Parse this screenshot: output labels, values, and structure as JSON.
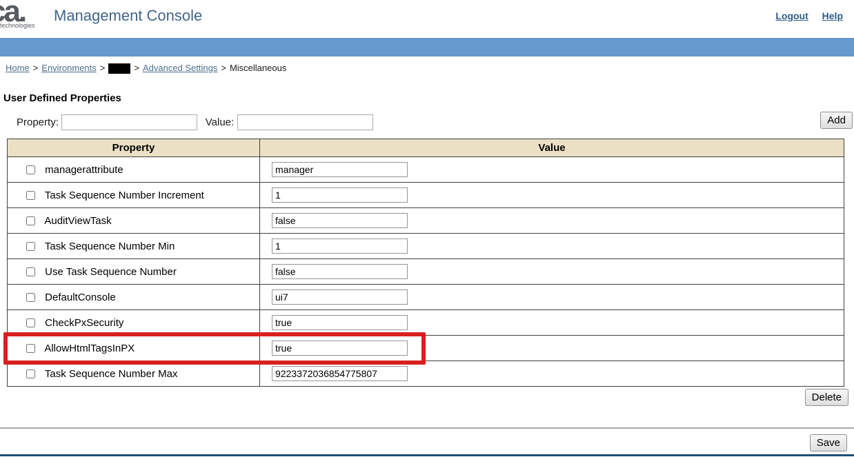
{
  "header": {
    "logo_brand": "ca.",
    "logo_sub": "technologies",
    "title": "Management Console",
    "logout_label": "Logout",
    "help_label": "Help"
  },
  "breadcrumb": {
    "separator": ">",
    "home": "Home",
    "environments": "Environments",
    "advanced_settings": "Advanced Settings",
    "current": "Miscellaneous"
  },
  "main": {
    "heading": "User Defined Properties",
    "add_form": {
      "property_label": "Property:",
      "property_value": "",
      "value_label": "Value:",
      "value_value": "",
      "add_button": "Add"
    },
    "table": {
      "columns": [
        "Property",
        "Value"
      ],
      "rows": [
        {
          "property": "managerattribute",
          "value": "manager",
          "checked": false,
          "highlighted": false
        },
        {
          "property": "Task Sequence Number Increment",
          "value": "1",
          "checked": false,
          "highlighted": false
        },
        {
          "property": "AuditViewTask",
          "value": "false",
          "checked": false,
          "highlighted": false
        },
        {
          "property": "Task Sequence Number Min",
          "value": "1",
          "checked": false,
          "highlighted": false
        },
        {
          "property": "Use Task Sequence Number",
          "value": "false",
          "checked": false,
          "highlighted": false
        },
        {
          "property": "DefaultConsole",
          "value": "ui7",
          "checked": false,
          "highlighted": false
        },
        {
          "property": "CheckPxSecurity",
          "value": "true",
          "checked": false,
          "highlighted": false
        },
        {
          "property": "AllowHtmlTagsInPX",
          "value": "true",
          "checked": false,
          "highlighted": true
        },
        {
          "property": "Task Sequence Number Max",
          "value": "9223372036854775807",
          "checked": false,
          "highlighted": false
        }
      ]
    },
    "delete_button": "Delete",
    "save_button": "Save"
  },
  "colors": {
    "top_bar": "#6699CC",
    "table_header_bg": "#EBE0C4",
    "highlight_border": "#D8201F",
    "title_color": "#41658C",
    "header_link_color": "#2B5C8A",
    "breadcrumb_link_color": "#4D6E8C",
    "bottom_bar": "#1C5077"
  }
}
